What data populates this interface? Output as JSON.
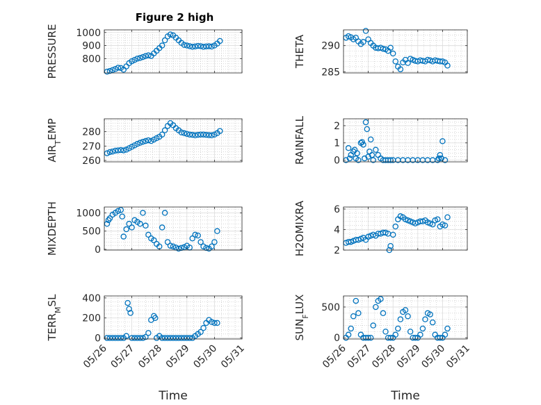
{
  "figure": {
    "title": "Figure 2 high",
    "marker_color": "#0072BD"
  },
  "chart_data": [
    {
      "type": "scatter",
      "ylabel": "PRESSURE",
      "title": "Figure 2 high",
      "xlim": [
        0,
        5
      ],
      "ylim": [
        690,
        1020
      ],
      "yticks": [
        800,
        900,
        1000
      ],
      "x": [
        0.1,
        0.2,
        0.3,
        0.4,
        0.5,
        0.6,
        0.7,
        0.8,
        0.9,
        1.0,
        1.1,
        1.2,
        1.3,
        1.4,
        1.5,
        1.6,
        1.7,
        1.8,
        1.9,
        2.0,
        2.1,
        2.2,
        2.3,
        2.4,
        2.5,
        2.6,
        2.7,
        2.8,
        2.9,
        3.0,
        3.1,
        3.2,
        3.3,
        3.4,
        3.5,
        3.6,
        3.7,
        3.8,
        3.9,
        4.0,
        4.1,
        4.2
      ],
      "y": [
        700,
        705,
        712,
        720,
        730,
        728,
        715,
        740,
        765,
        780,
        790,
        800,
        805,
        812,
        820,
        825,
        820,
        840,
        860,
        880,
        900,
        940,
        970,
        985,
        978,
        960,
        940,
        920,
        905,
        900,
        895,
        890,
        893,
        897,
        895,
        890,
        893,
        894,
        892,
        900,
        915,
        935
      ]
    },
    {
      "type": "scatter",
      "ylabel": "THETA",
      "xlim": [
        0,
        5
      ],
      "ylim": [
        284.8,
        293
      ],
      "yticks": [
        285,
        290
      ],
      "x": [
        0.1,
        0.2,
        0.3,
        0.4,
        0.5,
        0.6,
        0.7,
        0.8,
        0.9,
        1.0,
        1.1,
        1.2,
        1.3,
        1.4,
        1.5,
        1.6,
        1.7,
        1.8,
        1.9,
        2.0,
        2.1,
        2.2,
        2.3,
        2.4,
        2.5,
        2.6,
        2.7,
        2.8,
        2.9,
        3.0,
        3.1,
        3.2,
        3.3,
        3.4,
        3.5,
        3.6,
        3.7,
        3.8,
        3.9,
        4.0,
        4.1,
        4.2
      ],
      "y": [
        291.5,
        291.8,
        291.6,
        291.2,
        291.5,
        290.8,
        290.3,
        290.7,
        292.8,
        291.2,
        290.5,
        290.0,
        289.6,
        289.5,
        289.6,
        289.4,
        289.3,
        289.0,
        289.6,
        288.5,
        287.0,
        286.0,
        285.5,
        286.8,
        287.3,
        286.7,
        287.5,
        287.3,
        287.1,
        287.0,
        287.2,
        287.1,
        287.0,
        287.3,
        287.2,
        287.0,
        287.2,
        287.1,
        287.0,
        287.0,
        286.8,
        286.2
      ]
    },
    {
      "type": "scatter",
      "ylabel": "AIR_TEMP",
      "xlim": [
        0,
        5
      ],
      "ylim": [
        259,
        289
      ],
      "yticks": [
        260,
        270,
        280
      ],
      "x": [
        0.1,
        0.2,
        0.3,
        0.4,
        0.5,
        0.6,
        0.7,
        0.8,
        0.9,
        1.0,
        1.1,
        1.2,
        1.3,
        1.4,
        1.5,
        1.6,
        1.7,
        1.8,
        1.9,
        2.0,
        2.1,
        2.2,
        2.3,
        2.4,
        2.5,
        2.6,
        2.7,
        2.8,
        2.9,
        3.0,
        3.1,
        3.2,
        3.3,
        3.4,
        3.5,
        3.6,
        3.7,
        3.8,
        3.9,
        4.0,
        4.1,
        4.2
      ],
      "y": [
        265.0,
        265.8,
        266.2,
        266.8,
        267.0,
        267.2,
        267.0,
        267.5,
        268.5,
        269.5,
        270.5,
        271.5,
        272.3,
        273.0,
        273.5,
        274.0,
        273.5,
        274.5,
        275.5,
        276.5,
        278.0,
        281.0,
        284.0,
        286.0,
        284.5,
        282.5,
        281.0,
        279.5,
        279.0,
        278.5,
        278.0,
        277.8,
        277.5,
        277.8,
        278.0,
        278.0,
        277.8,
        277.6,
        277.5,
        278.0,
        279.0,
        280.5
      ]
    },
    {
      "type": "scatter",
      "ylabel": "RAINFALL",
      "xlim": [
        0,
        5
      ],
      "ylim": [
        -0.1,
        2.4
      ],
      "yticks": [
        0,
        1,
        2
      ],
      "x": [
        0.1,
        0.2,
        0.25,
        0.3,
        0.4,
        0.45,
        0.5,
        0.55,
        0.6,
        0.7,
        0.75,
        0.8,
        0.85,
        0.9,
        0.95,
        1.0,
        1.05,
        1.1,
        1.15,
        1.2,
        1.3,
        1.4,
        1.5,
        1.6,
        1.7,
        1.8,
        1.9,
        2.0,
        2.2,
        2.4,
        2.6,
        2.8,
        3.0,
        3.2,
        3.4,
        3.6,
        3.8,
        3.85,
        3.9,
        3.95,
        4.0,
        4.1
      ],
      "y": [
        0.0,
        0.7,
        0.1,
        0.3,
        0.5,
        0.6,
        0.1,
        0.4,
        0.0,
        1.0,
        1.05,
        0.9,
        0.1,
        2.2,
        1.8,
        0.2,
        0.5,
        1.2,
        0.3,
        0.0,
        0.6,
        0.3,
        0.1,
        0.0,
        0.0,
        0.0,
        0.0,
        0.0,
        0.0,
        0.0,
        0.0,
        0.0,
        0.0,
        0.0,
        0.0,
        0.0,
        0.0,
        0.1,
        0.3,
        0.1,
        1.1,
        0.0
      ]
    },
    {
      "type": "scatter",
      "ylabel": "MIXDEPTH",
      "xlim": [
        0,
        5
      ],
      "ylim": [
        -20,
        1160
      ],
      "yticks": [
        0,
        500,
        1000
      ],
      "x": [
        0.1,
        0.15,
        0.2,
        0.3,
        0.4,
        0.5,
        0.6,
        0.65,
        0.7,
        0.8,
        0.9,
        1.0,
        1.1,
        1.2,
        1.3,
        1.4,
        1.5,
        1.6,
        1.7,
        1.8,
        1.9,
        2.0,
        2.1,
        2.2,
        2.3,
        2.4,
        2.5,
        2.6,
        2.7,
        2.8,
        2.9,
        3.0,
        3.1,
        3.2,
        3.3,
        3.4,
        3.5,
        3.6,
        3.7,
        3.8,
        3.9,
        4.0,
        4.1
      ],
      "y": [
        700,
        800,
        850,
        950,
        1000,
        1050,
        1080,
        900,
        350,
        550,
        700,
        600,
        800,
        750,
        700,
        1000,
        650,
        400,
        300,
        250,
        150,
        80,
        600,
        1000,
        200,
        100,
        80,
        50,
        20,
        40,
        60,
        100,
        50,
        300,
        400,
        380,
        200,
        80,
        40,
        20,
        80,
        200,
        500
      ]
    },
    {
      "type": "scatter",
      "ylabel": "H2OMIXRA",
      "xlim": [
        0,
        5
      ],
      "ylim": [
        2,
        6.2
      ],
      "yticks": [
        2,
        4,
        6
      ],
      "x": [
        0.1,
        0.2,
        0.3,
        0.4,
        0.5,
        0.6,
        0.7,
        0.8,
        0.9,
        1.0,
        1.1,
        1.2,
        1.3,
        1.4,
        1.5,
        1.6,
        1.7,
        1.8,
        1.85,
        1.9,
        2.0,
        2.1,
        2.2,
        2.3,
        2.4,
        2.5,
        2.6,
        2.7,
        2.8,
        2.9,
        3.0,
        3.1,
        3.2,
        3.3,
        3.4,
        3.5,
        3.6,
        3.7,
        3.8,
        3.9,
        4.0,
        4.1,
        4.2
      ],
      "y": [
        2.7,
        2.8,
        2.8,
        2.9,
        3.0,
        3.0,
        3.1,
        3.2,
        3.0,
        3.3,
        3.4,
        3.5,
        3.4,
        3.6,
        3.6,
        3.7,
        3.7,
        3.6,
        2.0,
        2.4,
        3.5,
        4.3,
        5.0,
        5.3,
        5.2,
        5.0,
        4.9,
        4.8,
        4.7,
        4.6,
        4.7,
        4.8,
        4.8,
        4.9,
        4.7,
        4.6,
        4.5,
        4.9,
        5.0,
        4.3,
        4.5,
        4.4,
        5.2
      ]
    },
    {
      "type": "scatter",
      "ylabel": "TERR_MSL",
      "xlim": [
        0,
        5
      ],
      "ylim": [
        -10,
        420
      ],
      "yticks": [
        0,
        200,
        400
      ],
      "x": [
        0.1,
        0.2,
        0.3,
        0.4,
        0.5,
        0.6,
        0.7,
        0.8,
        0.85,
        0.9,
        0.95,
        1.0,
        1.1,
        1.2,
        1.3,
        1.4,
        1.5,
        1.6,
        1.7,
        1.8,
        1.85,
        1.9,
        2.0,
        2.1,
        2.2,
        2.3,
        2.4,
        2.5,
        2.6,
        2.7,
        2.8,
        2.9,
        3.0,
        3.1,
        3.2,
        3.3,
        3.4,
        3.5,
        3.6,
        3.7,
        3.8,
        3.9,
        4.0,
        4.1
      ],
      "y": [
        0,
        0,
        0,
        0,
        0,
        0,
        0,
        20,
        350,
        290,
        250,
        0,
        0,
        0,
        0,
        0,
        10,
        50,
        180,
        220,
        200,
        0,
        20,
        0,
        0,
        0,
        0,
        0,
        0,
        0,
        0,
        0,
        0,
        0,
        0,
        20,
        40,
        60,
        100,
        150,
        180,
        160,
        150,
        150
      ]
    },
    {
      "type": "scatter",
      "ylabel": "SUN_FLUX",
      "xlim": [
        0,
        5
      ],
      "ylim": [
        -20,
        680
      ],
      "yticks": [
        0,
        500
      ],
      "x": [
        0.1,
        0.2,
        0.3,
        0.4,
        0.5,
        0.6,
        0.7,
        0.8,
        0.9,
        1.0,
        1.1,
        1.2,
        1.3,
        1.4,
        1.5,
        1.6,
        1.7,
        1.8,
        1.9,
        2.0,
        2.1,
        2.2,
        2.3,
        2.4,
        2.5,
        2.6,
        2.7,
        2.8,
        2.9,
        3.0,
        3.1,
        3.2,
        3.3,
        3.4,
        3.5,
        3.6,
        3.7,
        3.8,
        3.9,
        4.0,
        4.1,
        4.2
      ],
      "y": [
        0,
        50,
        150,
        350,
        600,
        400,
        50,
        0,
        0,
        0,
        0,
        200,
        500,
        600,
        630,
        400,
        100,
        0,
        0,
        0,
        50,
        150,
        300,
        420,
        450,
        350,
        100,
        0,
        0,
        0,
        50,
        150,
        300,
        400,
        380,
        250,
        50,
        0,
        0,
        0,
        50,
        150
      ]
    }
  ],
  "xaxis": {
    "ticks": [
      0,
      1,
      2,
      3,
      4,
      5
    ],
    "tick_labels": [
      "05/26",
      "05/27",
      "05/28",
      "05/29",
      "05/30",
      "05/31"
    ],
    "label": "Time"
  }
}
